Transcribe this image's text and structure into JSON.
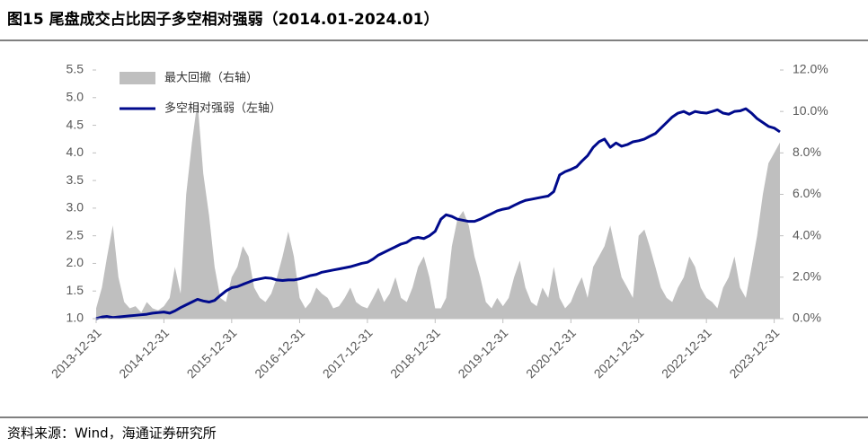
{
  "chart_data": {
    "type": "line-area",
    "title": "图15 尾盘成交占比因子多空相对强弱（2014.01-2024.01）",
    "source": "资料来源：Wind，海通证券研究所",
    "x": [
      "2013-12-31",
      "2014-01-31",
      "2014-02-28",
      "2014-03-31",
      "2014-04-30",
      "2014-05-31",
      "2014-06-30",
      "2014-07-31",
      "2014-08-31",
      "2014-09-30",
      "2014-10-31",
      "2014-11-30",
      "2014-12-31",
      "2015-01-31",
      "2015-02-28",
      "2015-03-31",
      "2015-04-30",
      "2015-05-31",
      "2015-06-30",
      "2015-07-31",
      "2015-08-31",
      "2015-09-30",
      "2015-10-31",
      "2015-11-30",
      "2015-12-31",
      "2016-01-31",
      "2016-02-29",
      "2016-03-31",
      "2016-04-30",
      "2016-05-31",
      "2016-06-30",
      "2016-07-31",
      "2016-08-31",
      "2016-09-30",
      "2016-10-31",
      "2016-11-30",
      "2016-12-31",
      "2017-01-31",
      "2017-02-28",
      "2017-03-31",
      "2017-04-30",
      "2017-05-31",
      "2017-06-30",
      "2017-07-31",
      "2017-08-31",
      "2017-09-30",
      "2017-10-31",
      "2017-11-30",
      "2017-12-31",
      "2018-01-31",
      "2018-02-28",
      "2018-03-31",
      "2018-04-30",
      "2018-05-31",
      "2018-06-30",
      "2018-07-31",
      "2018-08-31",
      "2018-09-30",
      "2018-10-31",
      "2018-11-30",
      "2018-12-31",
      "2019-01-31",
      "2019-02-28",
      "2019-03-31",
      "2019-04-30",
      "2019-05-31",
      "2019-06-30",
      "2019-07-31",
      "2019-08-31",
      "2019-09-30",
      "2019-10-31",
      "2019-11-30",
      "2019-12-31",
      "2020-01-31",
      "2020-02-29",
      "2020-03-31",
      "2020-04-30",
      "2020-05-31",
      "2020-06-30",
      "2020-07-31",
      "2020-08-31",
      "2020-09-30",
      "2020-10-31",
      "2020-11-30",
      "2020-12-31",
      "2021-01-31",
      "2021-02-28",
      "2021-03-31",
      "2021-04-30",
      "2021-05-31",
      "2021-06-30",
      "2021-07-31",
      "2021-08-31",
      "2021-09-30",
      "2021-10-31",
      "2021-11-30",
      "2021-12-31",
      "2022-01-31",
      "2022-02-28",
      "2022-03-31",
      "2022-04-30",
      "2022-05-31",
      "2022-06-30",
      "2022-07-31",
      "2022-08-31",
      "2022-09-30",
      "2022-10-31",
      "2022-11-30",
      "2022-12-31",
      "2023-01-31",
      "2023-02-28",
      "2023-03-31",
      "2023-04-30",
      "2023-05-31",
      "2023-06-30",
      "2023-07-31",
      "2023-08-31",
      "2023-09-30",
      "2023-10-31",
      "2023-11-30",
      "2023-12-31",
      "2024-01-31"
    ],
    "xlim": [
      "2013-12-31",
      "2024-01-31"
    ],
    "xticks": [
      "2013-12-31",
      "2014-12-31",
      "2015-12-31",
      "2016-12-31",
      "2017-12-31",
      "2018-12-31",
      "2019-12-31",
      "2020-12-31",
      "2021-12-31",
      "2022-12-31",
      "2023-12-31"
    ],
    "ylim": [
      1,
      5.5
    ],
    "yticks": [
      {
        "value": 1,
        "label": "1.0"
      },
      1.5,
      {
        "value": 2,
        "label": "2.0"
      },
      2.5,
      {
        "value": 3,
        "label": "3.0"
      },
      3.5,
      {
        "value": 4,
        "label": "4.0"
      },
      4.5,
      {
        "value": 5,
        "label": "5.0"
      },
      5.5
    ],
    "y2lim": [
      0,
      12
    ],
    "y2ticks": [
      {
        "value": 0,
        "label": "0.0%"
      },
      {
        "value": 2,
        "label": "2.0%"
      },
      {
        "value": 4,
        "label": "4.0%"
      },
      {
        "value": 6,
        "label": "6.0%"
      },
      {
        "value": 8,
        "label": "8.0%"
      },
      {
        "value": 10,
        "label": "10.0%"
      },
      {
        "value": 12,
        "label": "12.0%"
      }
    ],
    "legend": "top-left",
    "series": [
      {
        "name": "最大回撤（右轴）",
        "type": "area",
        "axis": "y2",
        "color": "#bfbfbf",
        "values": [
          0.5,
          1.5,
          3.0,
          4.5,
          2.0,
          0.8,
          0.5,
          0.6,
          0.3,
          0.8,
          0.5,
          0.4,
          0.6,
          1.0,
          2.5,
          1.2,
          6.0,
          8.5,
          10.5,
          7.0,
          5.0,
          2.5,
          1.0,
          0.8,
          2.0,
          2.5,
          3.5,
          3.0,
          1.5,
          1.0,
          0.8,
          1.2,
          2.0,
          3.0,
          4.2,
          3.0,
          1.0,
          0.5,
          0.8,
          1.5,
          1.2,
          1.0,
          0.5,
          0.6,
          1.0,
          1.5,
          0.8,
          0.6,
          0.5,
          1.0,
          1.5,
          0.8,
          1.2,
          2.0,
          1.0,
          0.8,
          1.5,
          2.5,
          3.0,
          2.0,
          0.5,
          0.5,
          1.0,
          3.5,
          4.8,
          5.2,
          4.5,
          3.0,
          2.0,
          0.8,
          0.5,
          1.0,
          0.6,
          1.0,
          2.0,
          2.8,
          1.5,
          0.8,
          0.6,
          1.5,
          1.0,
          2.5,
          1.0,
          0.5,
          0.8,
          1.5,
          2.0,
          1.0,
          2.5,
          3.0,
          3.5,
          4.5,
          3.2,
          2.0,
          1.5,
          1.0,
          4.0,
          4.3,
          3.5,
          2.5,
          1.5,
          1.0,
          0.8,
          1.5,
          2.0,
          3.0,
          2.5,
          1.5,
          1.0,
          0.8,
          0.5,
          1.5,
          2.0,
          3.0,
          1.5,
          1.0,
          2.5,
          4.0,
          6.0,
          7.5,
          8.0,
          8.5
        ]
      },
      {
        "name": "多空相对强弱（左轴）",
        "type": "line",
        "axis": "y",
        "color": "#000a8c",
        "values": [
          1.0,
          1.03,
          1.04,
          1.02,
          1.03,
          1.04,
          1.05,
          1.06,
          1.07,
          1.08,
          1.1,
          1.11,
          1.12,
          1.1,
          1.14,
          1.2,
          1.25,
          1.3,
          1.35,
          1.32,
          1.3,
          1.33,
          1.42,
          1.5,
          1.56,
          1.58,
          1.62,
          1.66,
          1.7,
          1.72,
          1.74,
          1.73,
          1.7,
          1.69,
          1.7,
          1.7,
          1.72,
          1.75,
          1.78,
          1.8,
          1.84,
          1.86,
          1.88,
          1.9,
          1.92,
          1.94,
          1.97,
          2.0,
          2.02,
          2.08,
          2.15,
          2.2,
          2.25,
          2.3,
          2.35,
          2.38,
          2.45,
          2.47,
          2.45,
          2.5,
          2.58,
          2.8,
          2.88,
          2.85,
          2.8,
          2.78,
          2.76,
          2.76,
          2.8,
          2.85,
          2.9,
          2.95,
          2.98,
          3.0,
          3.05,
          3.1,
          3.14,
          3.16,
          3.18,
          3.2,
          3.22,
          3.3,
          3.6,
          3.66,
          3.7,
          3.75,
          3.85,
          3.95,
          4.1,
          4.2,
          4.25,
          4.1,
          4.18,
          4.12,
          4.15,
          4.2,
          4.22,
          4.25,
          4.3,
          4.35,
          4.45,
          4.55,
          4.65,
          4.72,
          4.75,
          4.7,
          4.75,
          4.73,
          4.72,
          4.75,
          4.78,
          4.72,
          4.7,
          4.75,
          4.76,
          4.8,
          4.72,
          4.62,
          4.55,
          4.48,
          4.45,
          4.38
        ]
      }
    ]
  }
}
